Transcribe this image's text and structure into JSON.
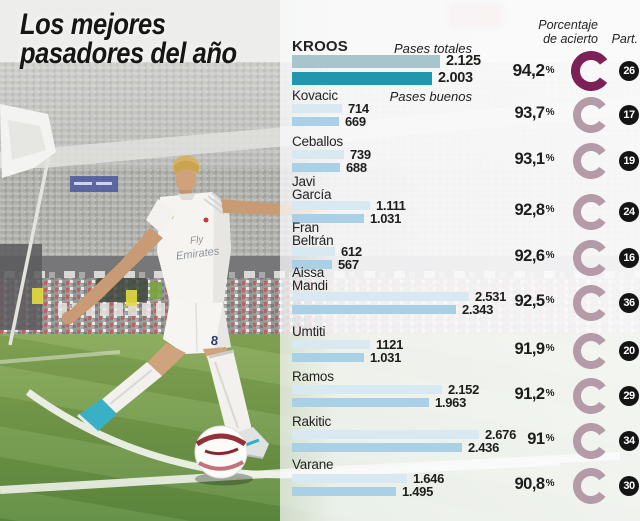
{
  "title": {
    "line1": "Los mejores",
    "line2": "pasadores del año"
  },
  "headers": {
    "pct_line1": "Porcentaje",
    "pct_line2": "de acierto",
    "part": "Part."
  },
  "legend": {
    "total": "Pases totales",
    "good": "Pases buenos"
  },
  "photo": {
    "jersey_sponsor_line1": "Fly",
    "jersey_sponsor_line2": "Emirates",
    "shorts_number": "8"
  },
  "colors": {
    "kroos_total_bar": "#a7c6cc",
    "kroos_good_bar": "#2097ad",
    "total_bar": "#d8e9f2",
    "good_bar": "#a9d0e4",
    "kroos_ring": "#7b2158",
    "ring": "#b59ba7",
    "badge_bg": "#141414",
    "text": "#1d1d1b"
  },
  "chart_data": {
    "type": "bar",
    "orientation": "horizontal",
    "title": "Los mejores pasadores del año",
    "series_names": [
      "Pases totales",
      "Pases buenos"
    ],
    "extra_columns": [
      "Porcentaje de acierto",
      "Part."
    ],
    "xlim": [
      0,
      2700
    ],
    "rows": [
      {
        "name": "Kroos",
        "name_lines": [
          "KROOS"
        ],
        "total": 2125,
        "good": 2003,
        "total_label": "2.125",
        "good_label": "2.003",
        "accuracy": 94.2,
        "accuracy_label": "94,2",
        "matches": 26
      },
      {
        "name": "Kovacic",
        "name_lines": [
          "Kovacic"
        ],
        "total": 714,
        "good": 669,
        "total_label": "714",
        "good_label": "669",
        "accuracy": 93.7,
        "accuracy_label": "93,7",
        "matches": 17
      },
      {
        "name": "Ceballos",
        "name_lines": [
          "Ceballos"
        ],
        "total": 739,
        "good": 688,
        "total_label": "739",
        "good_label": "688",
        "accuracy": 93.1,
        "accuracy_label": "93,1",
        "matches": 19
      },
      {
        "name": "Javi García",
        "name_lines": [
          "Javi",
          "García"
        ],
        "total": 1111,
        "good": 1031,
        "total_label": "1.111",
        "good_label": "1.031",
        "accuracy": 92.8,
        "accuracy_label": "92,8",
        "matches": 24
      },
      {
        "name": "Fran Beltrán",
        "name_lines": [
          "Fran",
          "Beltrán"
        ],
        "total": 612,
        "good": 567,
        "total_label": "612",
        "good_label": "567",
        "accuracy": 92.6,
        "accuracy_label": "92,6",
        "matches": 16
      },
      {
        "name": "Aissa Mandi",
        "name_lines": [
          "Aissa",
          "Mandi"
        ],
        "total": 2531,
        "good": 2343,
        "total_label": "2.531",
        "good_label": "2.343",
        "accuracy": 92.5,
        "accuracy_label": "92,5",
        "matches": 36
      },
      {
        "name": "Umtiti",
        "name_lines": [
          "Umtiti"
        ],
        "total": 1121,
        "good": 1031,
        "total_label": "1121",
        "good_label": "1.031",
        "accuracy": 91.9,
        "accuracy_label": "91,9",
        "matches": 20
      },
      {
        "name": "Ramos",
        "name_lines": [
          "Ramos"
        ],
        "total": 2152,
        "good": 1963,
        "total_label": "2.152",
        "good_label": "1.963",
        "accuracy": 91.2,
        "accuracy_label": "91,2",
        "matches": 29
      },
      {
        "name": "Rakitic",
        "name_lines": [
          "Rakitic"
        ],
        "total": 2676,
        "good": 2436,
        "total_label": "2.676",
        "good_label": "2.436",
        "accuracy": 91.0,
        "accuracy_label": "91",
        "matches": 34
      },
      {
        "name": "Varane",
        "name_lines": [
          "Varane"
        ],
        "total": 1646,
        "good": 1495,
        "total_label": "1.646",
        "good_label": "1.495",
        "accuracy": 90.8,
        "accuracy_label": "90,8",
        "matches": 30
      }
    ]
  }
}
